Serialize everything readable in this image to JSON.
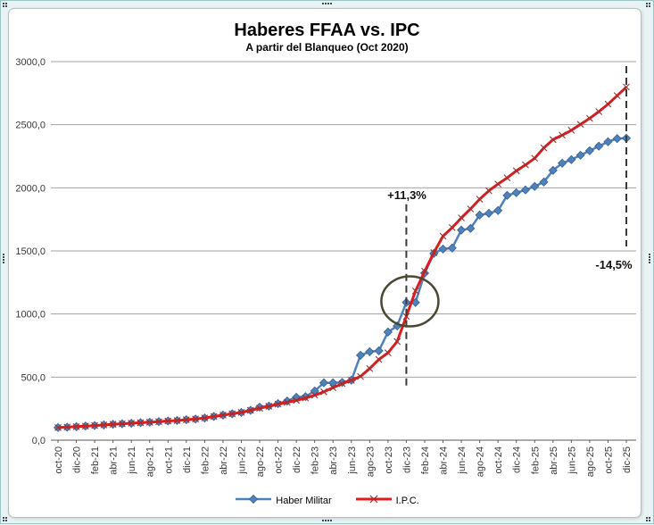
{
  "frame": {
    "handles": [
      {
        "pos": "top-left",
        "kind": "corner"
      },
      {
        "pos": "top-center",
        "kind": "horiz"
      },
      {
        "pos": "top-right",
        "kind": "corner"
      },
      {
        "pos": "middle-left",
        "kind": "vert"
      },
      {
        "pos": "middle-right",
        "kind": "vert"
      },
      {
        "pos": "bottom-left",
        "kind": "corner"
      },
      {
        "pos": "bottom-center",
        "kind": "horiz"
      },
      {
        "pos": "bottom-right",
        "kind": "corner"
      }
    ]
  },
  "chart_data": {
    "type": "line",
    "title": "Haberes FFAA vs. IPC",
    "subtitle": "A partir del Blanqueo (Oct 2020)",
    "ylim": [
      0,
      3000
    ],
    "ytick_step": 500,
    "ytick_labels": [
      "0,0",
      "500,0",
      "1000,0",
      "1500,0",
      "2000,0",
      "2500,0",
      "3000,0"
    ],
    "grid": true,
    "legend_position": "bottom",
    "x": [
      "oct-20",
      "nov-20",
      "dic-20",
      "ene-21",
      "feb-21",
      "mar-21",
      "abr-21",
      "may-21",
      "jun-21",
      "jul-21",
      "ago-21",
      "sep-21",
      "oct-21",
      "nov-21",
      "dic-21",
      "ene-22",
      "feb-22",
      "mar-22",
      "abr-22",
      "may-22",
      "jun-22",
      "jul-22",
      "ago-22",
      "sep-22",
      "oct-22",
      "nov-22",
      "dic-22",
      "ene-23",
      "feb-23",
      "mar-23",
      "abr-23",
      "may-23",
      "jun-23",
      "jul-23",
      "ago-23",
      "sep-23",
      "oct-23",
      "nov-23",
      "dic-23",
      "ene-24",
      "feb-24",
      "mar-24",
      "abr-24",
      "may-24",
      "jun-24",
      "jul-24",
      "ago-24",
      "sep-24",
      "oct-24",
      "nov-24",
      "dic-24",
      "ene-25",
      "feb-25",
      "mar-25",
      "abr-25",
      "may-25",
      "jun-25",
      "jul-25",
      "ago-25",
      "sep-25",
      "oct-25",
      "nov-25",
      "dic-25"
    ],
    "x_tick_labels": [
      "oct-20",
      "dic-20",
      "feb-21",
      "abr-21",
      "jun-21",
      "ago-21",
      "oct-21",
      "dic-21",
      "feb-22",
      "abr-22",
      "jun-22",
      "ago-22",
      "oct-22",
      "dic-22",
      "feb-23",
      "abr-23",
      "jun-23",
      "ago-23",
      "oct-23",
      "dic-23",
      "feb-24",
      "abr-24",
      "jun-24",
      "ago-24",
      "oct-24",
      "dic-24",
      "feb-25",
      "abr-25",
      "jun-25",
      "ago-25",
      "oct-25",
      "dic-25"
    ],
    "series": [
      {
        "name": "Haber Militar",
        "color": "#4f81bd",
        "marker": "diamond",
        "marker_edge": "#38618f",
        "values": [
          100,
          103,
          107,
          112,
          116,
          121,
          126,
          130,
          134,
          139,
          142,
          147,
          152,
          156,
          162,
          168,
          176,
          188,
          199,
          209,
          220,
          237,
          262,
          270,
          290,
          310,
          340,
          345,
          390,
          455,
          455,
          458,
          475,
          673,
          701,
          708,
          857,
          905,
          1091,
          1091,
          1324,
          1480,
          1515,
          1523,
          1665,
          1678,
          1784,
          1798,
          1820,
          1940,
          1961,
          1983,
          2011,
          2046,
          2138,
          2195,
          2223,
          2258,
          2294,
          2330,
          2365,
          2390,
          2393
        ]
      },
      {
        "name": "I.P.C.",
        "color": "#e01b1e",
        "marker": "x",
        "marker_color": "#993333",
        "values": [
          100.0,
          103.2,
          107.3,
          111.6,
          115.6,
          121.2,
          126.1,
          130.3,
          134.5,
          138.5,
          142.0,
          146.9,
          152.1,
          155.9,
          161.8,
          168.1,
          176.0,
          187.8,
          199.1,
          209.2,
          220.3,
          236.6,
          253.2,
          268.9,
          285.8,
          299.8,
          315.1,
          334.0,
          356.1,
          383.5,
          415.7,
          448.1,
          475.0,
          504.9,
          567.5,
          639.6,
          692.7,
          781.4,
          980.6,
          1182.6,
          1338.7,
          1486.0,
          1616.7,
          1684.6,
          1762.1,
          1832.6,
          1909.6,
          1976.4,
          2029.8,
          2078.5,
          2134.6,
          2181.6,
          2233.9,
          2316.6,
          2381.4,
          2417.2,
          2455.8,
          2502.5,
          2550.0,
          2603.6,
          2663.4,
          2730.0,
          2798.3
        ]
      }
    ],
    "annotations": [
      {
        "type": "vline",
        "x": "dic-23",
        "value_from": 400,
        "value_to": 1870,
        "label": "+11,3%",
        "color": "#3a3a36"
      },
      {
        "type": "vline",
        "x": "dic-25",
        "value_from": 1535,
        "value_to": 2965,
        "label": "-14,5%",
        "color": "#3a3a36"
      },
      {
        "type": "ellipse",
        "center_x": "dic-23",
        "center_y": 1100,
        "label": "crossover-highlight",
        "color": "#4a4732"
      }
    ],
    "colors": {
      "grid": "#a3a3a3",
      "axis": "#595959",
      "frame_bg": "#e8f4f3"
    }
  }
}
